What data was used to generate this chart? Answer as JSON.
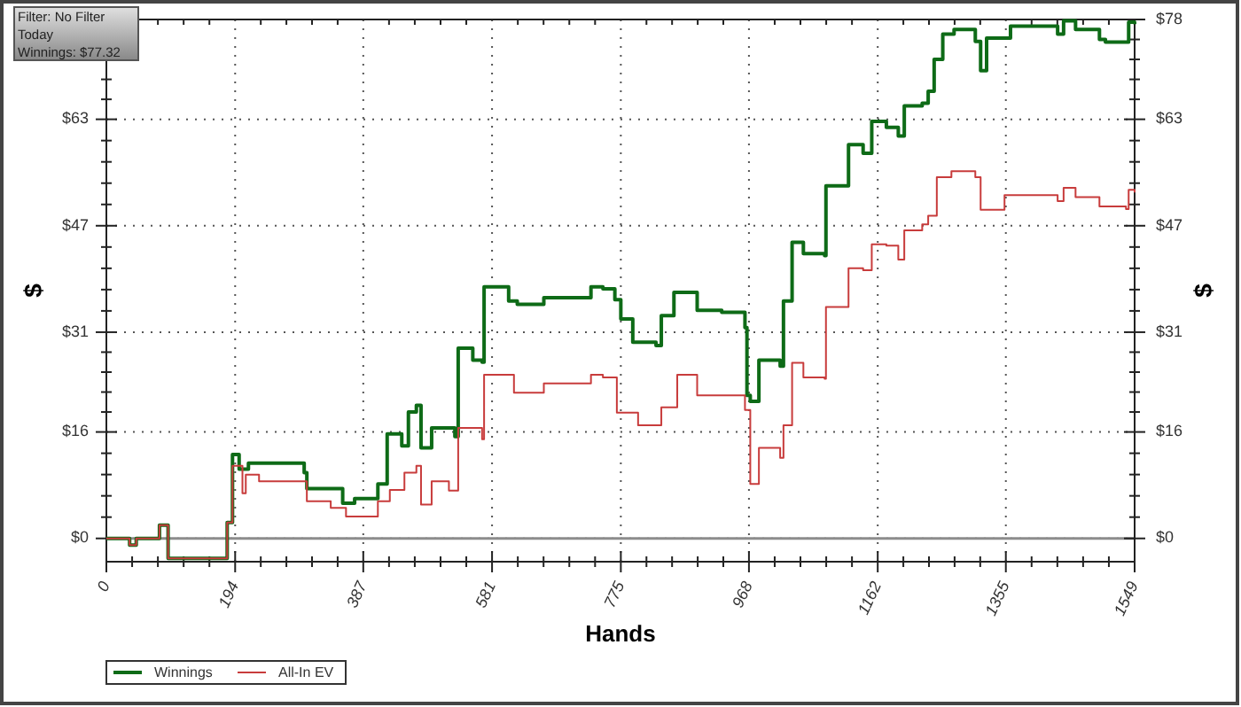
{
  "chart_data": {
    "type": "step",
    "xlabel": "Hands",
    "ylabel": "$",
    "y2label": "$",
    "annotations": [
      "Filter: No Filter",
      "Today",
      "Winnings: $77.32"
    ],
    "xlim": [
      0,
      1549
    ],
    "xticks": [
      0,
      194,
      387,
      581,
      775,
      968,
      1162,
      1355,
      1549
    ],
    "ylim": [
      -3.5,
      78
    ],
    "yticks": [
      {
        "value": 0,
        "label": "$0"
      },
      {
        "value": 16,
        "label": "$16"
      },
      {
        "value": 31,
        "label": "$31"
      },
      {
        "value": 47,
        "label": "$47"
      },
      {
        "value": 63,
        "label": "$63"
      },
      {
        "value": 78,
        "label": null
      }
    ],
    "y2lim": [
      -3.5,
      78
    ],
    "y2ticks": [
      {
        "value": 0,
        "label": "$0"
      },
      {
        "value": 16,
        "label": "$16"
      },
      {
        "value": 31,
        "label": "$31"
      },
      {
        "value": 47,
        "label": "$47"
      },
      {
        "value": 63,
        "label": "$63"
      },
      {
        "value": 78,
        "label": "$78"
      }
    ],
    "grid": true,
    "legend": "bottom left",
    "line_style": "solid",
    "ref_lines": [
      {
        "axis": "y",
        "value": 0,
        "color": "#8c8c8c"
      }
    ],
    "series": [
      {
        "name": "Winnings",
        "color": "#0e6b17",
        "x": [
          0,
          35,
          45,
          80,
          93,
          176,
          182,
          190,
          200,
          214,
          298,
          302,
          356,
          374,
          409,
          423,
          445,
          455,
          467,
          474,
          490,
          525,
          530,
          552,
          566,
          569,
          606,
          619,
          659,
          730,
          748,
          766,
          775,
          793,
          828,
          836,
          855,
          890,
          927,
          962,
          965,
          970,
          983,
          1015,
          1020,
          1033,
          1050,
          1082,
          1084,
          1116,
          1118,
          1140,
          1153,
          1175,
          1193,
          1202,
          1229,
          1238,
          1247,
          1260,
          1277,
          1309,
          1317,
          1326,
          1362,
          1433,
          1442,
          1460,
          1496,
          1505,
          1536,
          1540,
          1549
        ],
        "values": [
          0,
          -1,
          0,
          2,
          -3,
          -3,
          2.4,
          12.6,
          10.4,
          11.3,
          9.9,
          7.5,
          5.3,
          6,
          8.2,
          15.7,
          13.9,
          19,
          20,
          13.6,
          16.6,
          15.3,
          28.6,
          26.8,
          26.5,
          37.8,
          35.7,
          35.2,
          36.2,
          37.8,
          37.5,
          35.9,
          33,
          29.5,
          29,
          33.5,
          37,
          34.3,
          34,
          31.7,
          21.5,
          20.6,
          26.8,
          25.9,
          35.7,
          44.5,
          42.8,
          42.5,
          53,
          53,
          59.2,
          57.9,
          62.7,
          61.8,
          60.5,
          65,
          65.4,
          67.2,
          72,
          75.8,
          76.5,
          74.7,
          70.3,
          75.2,
          77,
          75.8,
          77.8,
          76.5,
          75,
          74.6,
          74.6,
          77.6,
          77.3
        ]
      },
      {
        "name": "All-In EV",
        "color": "#c83c3c",
        "x": [
          0,
          35,
          45,
          80,
          93,
          176,
          182,
          190,
          205,
          210,
          230,
          302,
          338,
          361,
          409,
          427,
          449,
          467,
          474,
          490,
          516,
          530,
          566,
          569,
          614,
          659,
          730,
          748,
          769,
          801,
          828,
          836,
          860,
          890,
          927,
          962,
          970,
          983,
          1015,
          1020,
          1033,
          1050,
          1082,
          1084,
          1116,
          1118,
          1140,
          1153,
          1175,
          1193,
          1202,
          1229,
          1238,
          1251,
          1273,
          1309,
          1317,
          1353,
          1433,
          1442,
          1460,
          1496,
          1536,
          1540,
          1549
        ],
        "values": [
          0,
          -1,
          0,
          2,
          -3,
          -3,
          2.4,
          10.9,
          6.8,
          9.6,
          8.6,
          5.6,
          4.6,
          3.3,
          5.6,
          7.3,
          9.9,
          10.9,
          5.1,
          8.6,
          7.2,
          16.6,
          14.9,
          24.6,
          21.9,
          23.3,
          24.6,
          24.2,
          18.9,
          17,
          17,
          19.7,
          24.6,
          21.5,
          21.5,
          19.3,
          8.2,
          13.6,
          12.1,
          17,
          26.4,
          24.2,
          24,
          34.8,
          34.8,
          40.6,
          40.3,
          44.2,
          44,
          41.9,
          46.3,
          47.2,
          48.5,
          54.3,
          55.2,
          54.3,
          49.4,
          51.6,
          50.7,
          52.7,
          51.3,
          49.9,
          49.5,
          52.4,
          52
        ]
      }
    ]
  }
}
